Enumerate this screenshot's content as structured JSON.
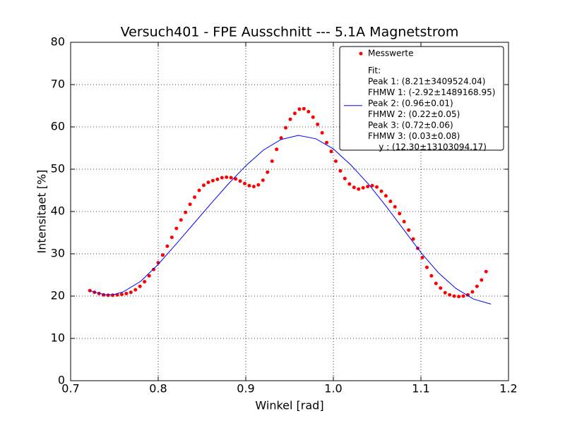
{
  "chart_data": {
    "type": "scatter_fit",
    "title": "Versuch401 - FPE Ausschnitt --- 5.1A Magnetstrom",
    "x_label": "Winkel [rad]",
    "y_label": "Intensitaet [%]",
    "xlim": [
      0.7,
      1.2
    ],
    "xticks": [
      0.7,
      0.8,
      0.9,
      {
        "value": 1.0,
        "label": "1.0"
      },
      1.1,
      1.2
    ],
    "ylim": [
      0,
      80
    ],
    "yticks": [
      0,
      10,
      20,
      30,
      40,
      50,
      60,
      70,
      80
    ],
    "grid": true,
    "legend": "upper right",
    "series": [
      {
        "name": "Messwerte",
        "kind": "points",
        "color": "#ff0000",
        "x": [
          0.722,
          0.7272,
          0.7324,
          0.7376,
          0.7428,
          0.748,
          0.7532,
          0.7584,
          0.7636,
          0.7688,
          0.774,
          0.7792,
          0.7844,
          0.7896,
          0.7948,
          0.8,
          0.8052,
          0.8104,
          0.8156,
          0.8208,
          0.826,
          0.8312,
          0.8364,
          0.8416,
          0.8468,
          0.852,
          0.8572,
          0.8624,
          0.8676,
          0.8728,
          0.878,
          0.8832,
          0.8884,
          0.8936,
          0.8988,
          0.904,
          0.9092,
          0.9144,
          0.9196,
          0.9248,
          0.93,
          0.9352,
          0.9404,
          0.9456,
          0.9508,
          0.956,
          0.9612,
          0.9664,
          0.9716,
          0.9768,
          0.982,
          0.9872,
          0.9924,
          0.9976,
          1.0028,
          1.008,
          1.0132,
          1.0184,
          1.0236,
          1.0288,
          1.034,
          1.0392,
          1.0444,
          1.0496,
          1.0548,
          1.06,
          1.0652,
          1.0704,
          1.0756,
          1.0808,
          1.086,
          1.0912,
          1.0964,
          1.1016,
          1.1068,
          1.112,
          1.1172,
          1.1224,
          1.1276,
          1.1328,
          1.138,
          1.1432,
          1.1484,
          1.1536,
          1.1588,
          1.164,
          1.1692,
          1.1744
        ],
        "values": [
          21.3,
          20.9,
          20.6,
          20.3,
          20.2,
          20.2,
          20.3,
          20.4,
          20.6,
          20.9,
          21.5,
          22.3,
          23.4,
          24.8,
          26.3,
          27.9,
          29.7,
          31.8,
          33.9,
          36.0,
          38.0,
          39.8,
          41.7,
          43.4,
          45.0,
          46.2,
          46.9,
          47.3,
          47.6,
          48.0,
          48.1,
          48.0,
          47.7,
          47.2,
          46.6,
          46.1,
          45.9,
          46.3,
          47.4,
          49.3,
          51.9,
          54.7,
          57.4,
          59.8,
          61.8,
          63.2,
          64.2,
          64.3,
          63.6,
          62.3,
          60.6,
          58.6,
          56.3,
          54.2,
          51.9,
          49.6,
          47.8,
          46.5,
          45.7,
          45.3,
          45.6,
          45.9,
          46.1,
          45.8,
          44.8,
          43.7,
          42.4,
          41.1,
          39.5,
          37.6,
          35.6,
          33.5,
          31.3,
          29.1,
          26.8,
          24.8,
          23.0,
          21.9,
          20.8,
          20.3,
          20.0,
          19.9,
          20.0,
          20.3,
          21.0,
          22.3,
          23.8,
          25.8
        ]
      },
      {
        "name": [
          "Fit:",
          "Peak 1: (8.21±3409524.04)",
          "FHMW 1: (-2.92±1489168.95)",
          "Peak 2: (0.96±0.01)",
          "FHMW 2: (0.22±0.05)",
          "Peak 3: (0.72±0.06)",
          "FHMW 3: (0.03±0.08)",
          "    y : (12.30±13103094.17)"
        ],
        "kind": "line",
        "color": "#0000ff",
        "x": [
          0.722,
          0.73,
          0.74,
          0.75,
          0.76,
          0.78,
          0.8,
          0.82,
          0.84,
          0.86,
          0.88,
          0.9,
          0.92,
          0.94,
          0.96,
          0.98,
          1.0,
          1.02,
          1.04,
          1.06,
          1.08,
          1.1,
          1.12,
          1.14,
          1.16,
          1.18
        ],
        "values": [
          21.3,
          20.8,
          20.3,
          20.4,
          21.0,
          23.5,
          27.5,
          32.2,
          37.0,
          41.8,
          46.5,
          50.8,
          54.5,
          57.0,
          58.0,
          57.2,
          54.8,
          51.0,
          46.5,
          41.3,
          35.8,
          30.3,
          25.5,
          21.8,
          19.3,
          18.1
        ]
      }
    ]
  }
}
